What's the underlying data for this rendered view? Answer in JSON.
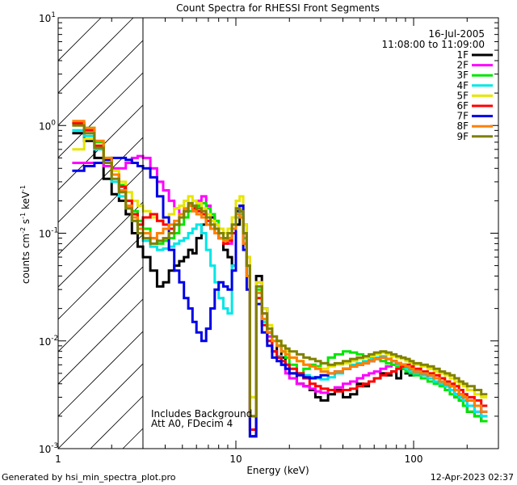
{
  "chart_data": {
    "type": "line",
    "title": "Count Spectra for RHESSI Front Segments",
    "xlabel": "Energy (keV)",
    "ylabel_main": "counts cm",
    "ylabel_exp1": "-2",
    "ylabel_mid": " s",
    "ylabel_exp2": "-1",
    "ylabel_end": " keV",
    "ylabel_exp3": "-1",
    "x_scale": "log",
    "y_scale": "log",
    "xlim": [
      1,
      300
    ],
    "ylim": [
      0.001,
      10
    ],
    "x_ticks": [
      {
        "value": 1,
        "label": "1"
      },
      {
        "value": 10,
        "label": "10"
      },
      {
        "value": 100,
        "label": "100"
      }
    ],
    "y_ticks": [
      {
        "value": 0.001,
        "base": "10",
        "exp": "-3"
      },
      {
        "value": 0.01,
        "base": "10",
        "exp": "-2"
      },
      {
        "value": 0.1,
        "base": "10",
        "exp": "-1"
      },
      {
        "value": 1,
        "base": "10",
        "exp": "0"
      },
      {
        "value": 10,
        "base": "10",
        "exp": "1"
      }
    ],
    "hatch_region_kev": [
      1,
      3
    ],
    "date": "16-Jul-2005",
    "time_range": "11:08:00 to 11:09:00",
    "annotation_line1": "Includes Background",
    "annotation_line2": "Att A0, FDecim 4",
    "footer_left": "Generated by hsi_min_spectra_plot.pro",
    "footer_right": "12-Apr-2023 02:37",
    "legend_position": "top-right",
    "energy_edges": [
      1.2,
      1.4,
      1.6,
      1.8,
      2.0,
      2.2,
      2.4,
      2.6,
      2.8,
      3.0,
      3.3,
      3.6,
      3.9,
      4.2,
      4.5,
      4.8,
      5.1,
      5.4,
      5.7,
      6.0,
      6.4,
      6.8,
      7.2,
      7.6,
      8.0,
      8.5,
      9.0,
      9.5,
      10.0,
      10.5,
      11.0,
      11.5,
      12.0,
      13,
      14,
      15,
      16,
      17,
      18,
      19,
      20,
      22,
      24,
      26,
      28,
      30,
      33,
      36,
      40,
      44,
      48,
      52,
      56,
      60,
      65,
      70,
      75,
      80,
      85,
      90,
      95,
      100,
      110,
      120,
      130,
      140,
      150,
      160,
      170,
      180,
      190,
      200,
      220,
      240,
      260,
      280,
      300
    ],
    "series": [
      {
        "name": "1F",
        "color": "#000000",
        "values": [
          0.85,
          0.72,
          0.5,
          0.32,
          0.23,
          0.2,
          0.15,
          0.1,
          0.075,
          0.06,
          0.045,
          0.032,
          0.035,
          0.045,
          0.05,
          0.055,
          0.06,
          0.07,
          0.065,
          0.09,
          0.12,
          0.15,
          0.14,
          0.11,
          0.09,
          0.07,
          0.06,
          0.05,
          0.12,
          0.18,
          0.12,
          0.05,
          0.0013,
          0.04,
          0.02,
          0.012,
          0.008,
          0.009,
          0.007,
          0.006,
          0.005,
          0.004,
          0.0038,
          0.0035,
          0.003,
          0.0028,
          0.0032,
          0.0035,
          0.003,
          0.0032,
          0.004,
          0.0038,
          0.0042,
          0.0045,
          0.005,
          0.0048,
          0.0052,
          0.0045,
          0.0055,
          0.005,
          0.0048,
          0.0052,
          0.005,
          0.0045,
          0.0042,
          0.004,
          0.0038,
          0.0035,
          0.003,
          0.0028,
          0.0025,
          0.0022,
          0.002,
          0.0018
        ]
      },
      {
        "name": "2F",
        "color": "#ff00ff",
        "values": [
          0.45,
          0.45,
          0.45,
          0.42,
          0.4,
          0.4,
          0.45,
          0.5,
          0.52,
          0.5,
          0.4,
          0.3,
          0.25,
          0.2,
          0.17,
          0.15,
          0.16,
          0.18,
          0.17,
          0.2,
          0.22,
          0.18,
          0.15,
          0.12,
          0.1,
          0.09,
          0.08,
          0.1,
          0.15,
          0.16,
          0.1,
          0.06,
          0.002,
          0.035,
          0.018,
          0.011,
          0.008,
          0.007,
          0.006,
          0.005,
          0.0045,
          0.004,
          0.0038,
          0.0036,
          0.0034,
          0.0033,
          0.0035,
          0.0037,
          0.004,
          0.0042,
          0.0045,
          0.0048,
          0.005,
          0.0052,
          0.0055,
          0.0058,
          0.006,
          0.0062,
          0.006,
          0.0058,
          0.0055,
          0.0052,
          0.005,
          0.0048,
          0.0045,
          0.004,
          0.0038,
          0.0035,
          0.0032,
          0.003,
          0.0028,
          0.0025,
          0.0022,
          0.002
        ]
      },
      {
        "name": "3F",
        "color": "#00e600",
        "values": [
          1.05,
          0.95,
          0.7,
          0.5,
          0.35,
          0.28,
          0.2,
          0.16,
          0.13,
          0.11,
          0.09,
          0.08,
          0.085,
          0.09,
          0.1,
          0.12,
          0.14,
          0.16,
          0.17,
          0.18,
          0.19,
          0.17,
          0.15,
          0.13,
          0.11,
          0.1,
          0.09,
          0.12,
          0.16,
          0.14,
          0.09,
          0.05,
          0.003,
          0.03,
          0.015,
          0.012,
          0.01,
          0.009,
          0.008,
          0.007,
          0.006,
          0.005,
          0.0055,
          0.006,
          0.0058,
          0.0062,
          0.007,
          0.0075,
          0.008,
          0.0078,
          0.0075,
          0.0072,
          0.007,
          0.0068,
          0.0065,
          0.0062,
          0.006,
          0.0058,
          0.0055,
          0.0052,
          0.005,
          0.0048,
          0.0045,
          0.0042,
          0.004,
          0.0038,
          0.0035,
          0.0032,
          0.003,
          0.0028,
          0.0025,
          0.0022,
          0.002,
          0.0018
        ]
      },
      {
        "name": "4F",
        "color": "#00e6e6",
        "values": [
          0.9,
          0.8,
          0.6,
          0.45,
          0.3,
          0.22,
          0.17,
          0.13,
          0.1,
          0.085,
          0.075,
          0.07,
          0.072,
          0.075,
          0.08,
          0.085,
          0.09,
          0.1,
          0.11,
          0.12,
          0.1,
          0.07,
          0.05,
          0.035,
          0.025,
          0.02,
          0.018,
          0.05,
          0.14,
          0.15,
          0.08,
          0.04,
          0.0015,
          0.028,
          0.015,
          0.01,
          0.008,
          0.0072,
          0.0065,
          0.006,
          0.0055,
          0.005,
          0.0048,
          0.0046,
          0.0045,
          0.0044,
          0.0046,
          0.005,
          0.0055,
          0.006,
          0.0062,
          0.0065,
          0.0068,
          0.007,
          0.0072,
          0.0068,
          0.0065,
          0.006,
          0.0058,
          0.0055,
          0.0052,
          0.005,
          0.0048,
          0.0045,
          0.0042,
          0.004,
          0.0038,
          0.0035,
          0.0032,
          0.003,
          0.0028,
          0.0025,
          0.0022,
          0.002
        ]
      },
      {
        "name": "5F",
        "color": "#e6e600",
        "values": [
          0.6,
          0.75,
          0.65,
          0.5,
          0.38,
          0.3,
          0.24,
          0.2,
          0.18,
          0.16,
          0.14,
          0.13,
          0.14,
          0.15,
          0.17,
          0.18,
          0.2,
          0.22,
          0.2,
          0.19,
          0.17,
          0.15,
          0.13,
          0.12,
          0.11,
          0.1,
          0.11,
          0.14,
          0.2,
          0.22,
          0.12,
          0.06,
          0.003,
          0.035,
          0.02,
          0.014,
          0.011,
          0.01,
          0.009,
          0.008,
          0.007,
          0.0065,
          0.006,
          0.0058,
          0.0056,
          0.0055,
          0.0058,
          0.006,
          0.0062,
          0.0065,
          0.0068,
          0.007,
          0.0072,
          0.0075,
          0.0078,
          0.0075,
          0.0072,
          0.007,
          0.0068,
          0.0065,
          0.0062,
          0.006,
          0.0058,
          0.0055,
          0.0052,
          0.005,
          0.0048,
          0.0045,
          0.0042,
          0.004,
          0.0038,
          0.0035,
          0.0032,
          0.003
        ]
      },
      {
        "name": "6F",
        "color": "#ff0000",
        "values": [
          1.05,
          0.9,
          0.65,
          0.48,
          0.35,
          0.27,
          0.2,
          0.15,
          0.12,
          0.14,
          0.15,
          0.13,
          0.12,
          0.11,
          0.12,
          0.14,
          0.16,
          0.18,
          0.17,
          0.16,
          0.15,
          0.13,
          0.11,
          0.1,
          0.09,
          0.08,
          0.085,
          0.1,
          0.15,
          0.14,
          0.08,
          0.04,
          0.0015,
          0.025,
          0.014,
          0.01,
          0.008,
          0.007,
          0.0065,
          0.006,
          0.0055,
          0.005,
          0.0045,
          0.004,
          0.0038,
          0.0036,
          0.0035,
          0.0034,
          0.0035,
          0.0036,
          0.0038,
          0.004,
          0.0042,
          0.0045,
          0.0048,
          0.005,
          0.0052,
          0.0055,
          0.0058,
          0.006,
          0.0058,
          0.0055,
          0.0052,
          0.005,
          0.0048,
          0.0045,
          0.0042,
          0.004,
          0.0038,
          0.0035,
          0.0032,
          0.003,
          0.0028,
          0.0025
        ]
      },
      {
        "name": "7F",
        "color": "#0000e6",
        "values": [
          0.38,
          0.42,
          0.45,
          0.48,
          0.5,
          0.5,
          0.48,
          0.45,
          0.42,
          0.4,
          0.33,
          0.22,
          0.14,
          0.07,
          0.045,
          0.035,
          0.025,
          0.02,
          0.015,
          0.012,
          0.01,
          0.013,
          0.02,
          0.03,
          0.035,
          0.032,
          0.03,
          0.045,
          0.16,
          0.18,
          0.07,
          0.03,
          0.0013,
          0.022,
          0.012,
          0.009,
          0.007,
          0.0065,
          0.006,
          0.0055,
          0.005,
          0.0048,
          0.0046,
          0.0045,
          0.0046,
          0.0048,
          0.005,
          0.0052,
          0.0055,
          0.0058,
          0.006,
          0.0062,
          0.0065,
          0.0068,
          0.007,
          0.0068,
          0.0065,
          0.0062,
          0.006,
          0.0058,
          0.0055,
          0.0052,
          0.005,
          0.0048,
          0.0045,
          0.0042,
          0.004,
          0.0038,
          0.0035,
          0.0032,
          0.003,
          0.0028,
          0.0025,
          0.0022
        ]
      },
      {
        "name": "8F",
        "color": "#ff8000",
        "values": [
          1.1,
          0.95,
          0.72,
          0.5,
          0.35,
          0.25,
          0.18,
          0.14,
          0.11,
          0.1,
          0.09,
          0.1,
          0.11,
          0.12,
          0.13,
          0.15,
          0.17,
          0.18,
          0.16,
          0.15,
          0.14,
          0.12,
          0.11,
          0.1,
          0.09,
          0.085,
          0.09,
          0.11,
          0.15,
          0.14,
          0.08,
          0.04,
          0.002,
          0.028,
          0.016,
          0.012,
          0.01,
          0.009,
          0.008,
          0.0075,
          0.007,
          0.0065,
          0.006,
          0.0058,
          0.0055,
          0.0052,
          0.005,
          0.0052,
          0.0055,
          0.0058,
          0.006,
          0.0062,
          0.0065,
          0.0068,
          0.007,
          0.0068,
          0.0065,
          0.0062,
          0.006,
          0.0058,
          0.0055,
          0.0052,
          0.005,
          0.0048,
          0.0045,
          0.0042,
          0.004,
          0.0038,
          0.0035,
          0.0032,
          0.003,
          0.0028,
          0.0025,
          0.0022
        ]
      },
      {
        "name": "9F",
        "color": "#808000",
        "values": [
          1.0,
          0.85,
          0.62,
          0.45,
          0.32,
          0.24,
          0.17,
          0.13,
          0.1,
          0.09,
          0.08,
          0.085,
          0.09,
          0.1,
          0.12,
          0.14,
          0.16,
          0.19,
          0.18,
          0.17,
          0.16,
          0.14,
          0.12,
          0.11,
          0.1,
          0.09,
          0.1,
          0.12,
          0.17,
          0.16,
          0.1,
          0.05,
          0.002,
          0.032,
          0.018,
          0.013,
          0.011,
          0.01,
          0.009,
          0.0085,
          0.008,
          0.0075,
          0.007,
          0.0068,
          0.0065,
          0.0062,
          0.006,
          0.0062,
          0.0065,
          0.0068,
          0.007,
          0.0072,
          0.0075,
          0.0078,
          0.008,
          0.0078,
          0.0075,
          0.0072,
          0.007,
          0.0068,
          0.0065,
          0.0062,
          0.006,
          0.0058,
          0.0055,
          0.0052,
          0.005,
          0.0048,
          0.0045,
          0.0042,
          0.004,
          0.0038,
          0.0035,
          0.0032
        ]
      }
    ]
  }
}
